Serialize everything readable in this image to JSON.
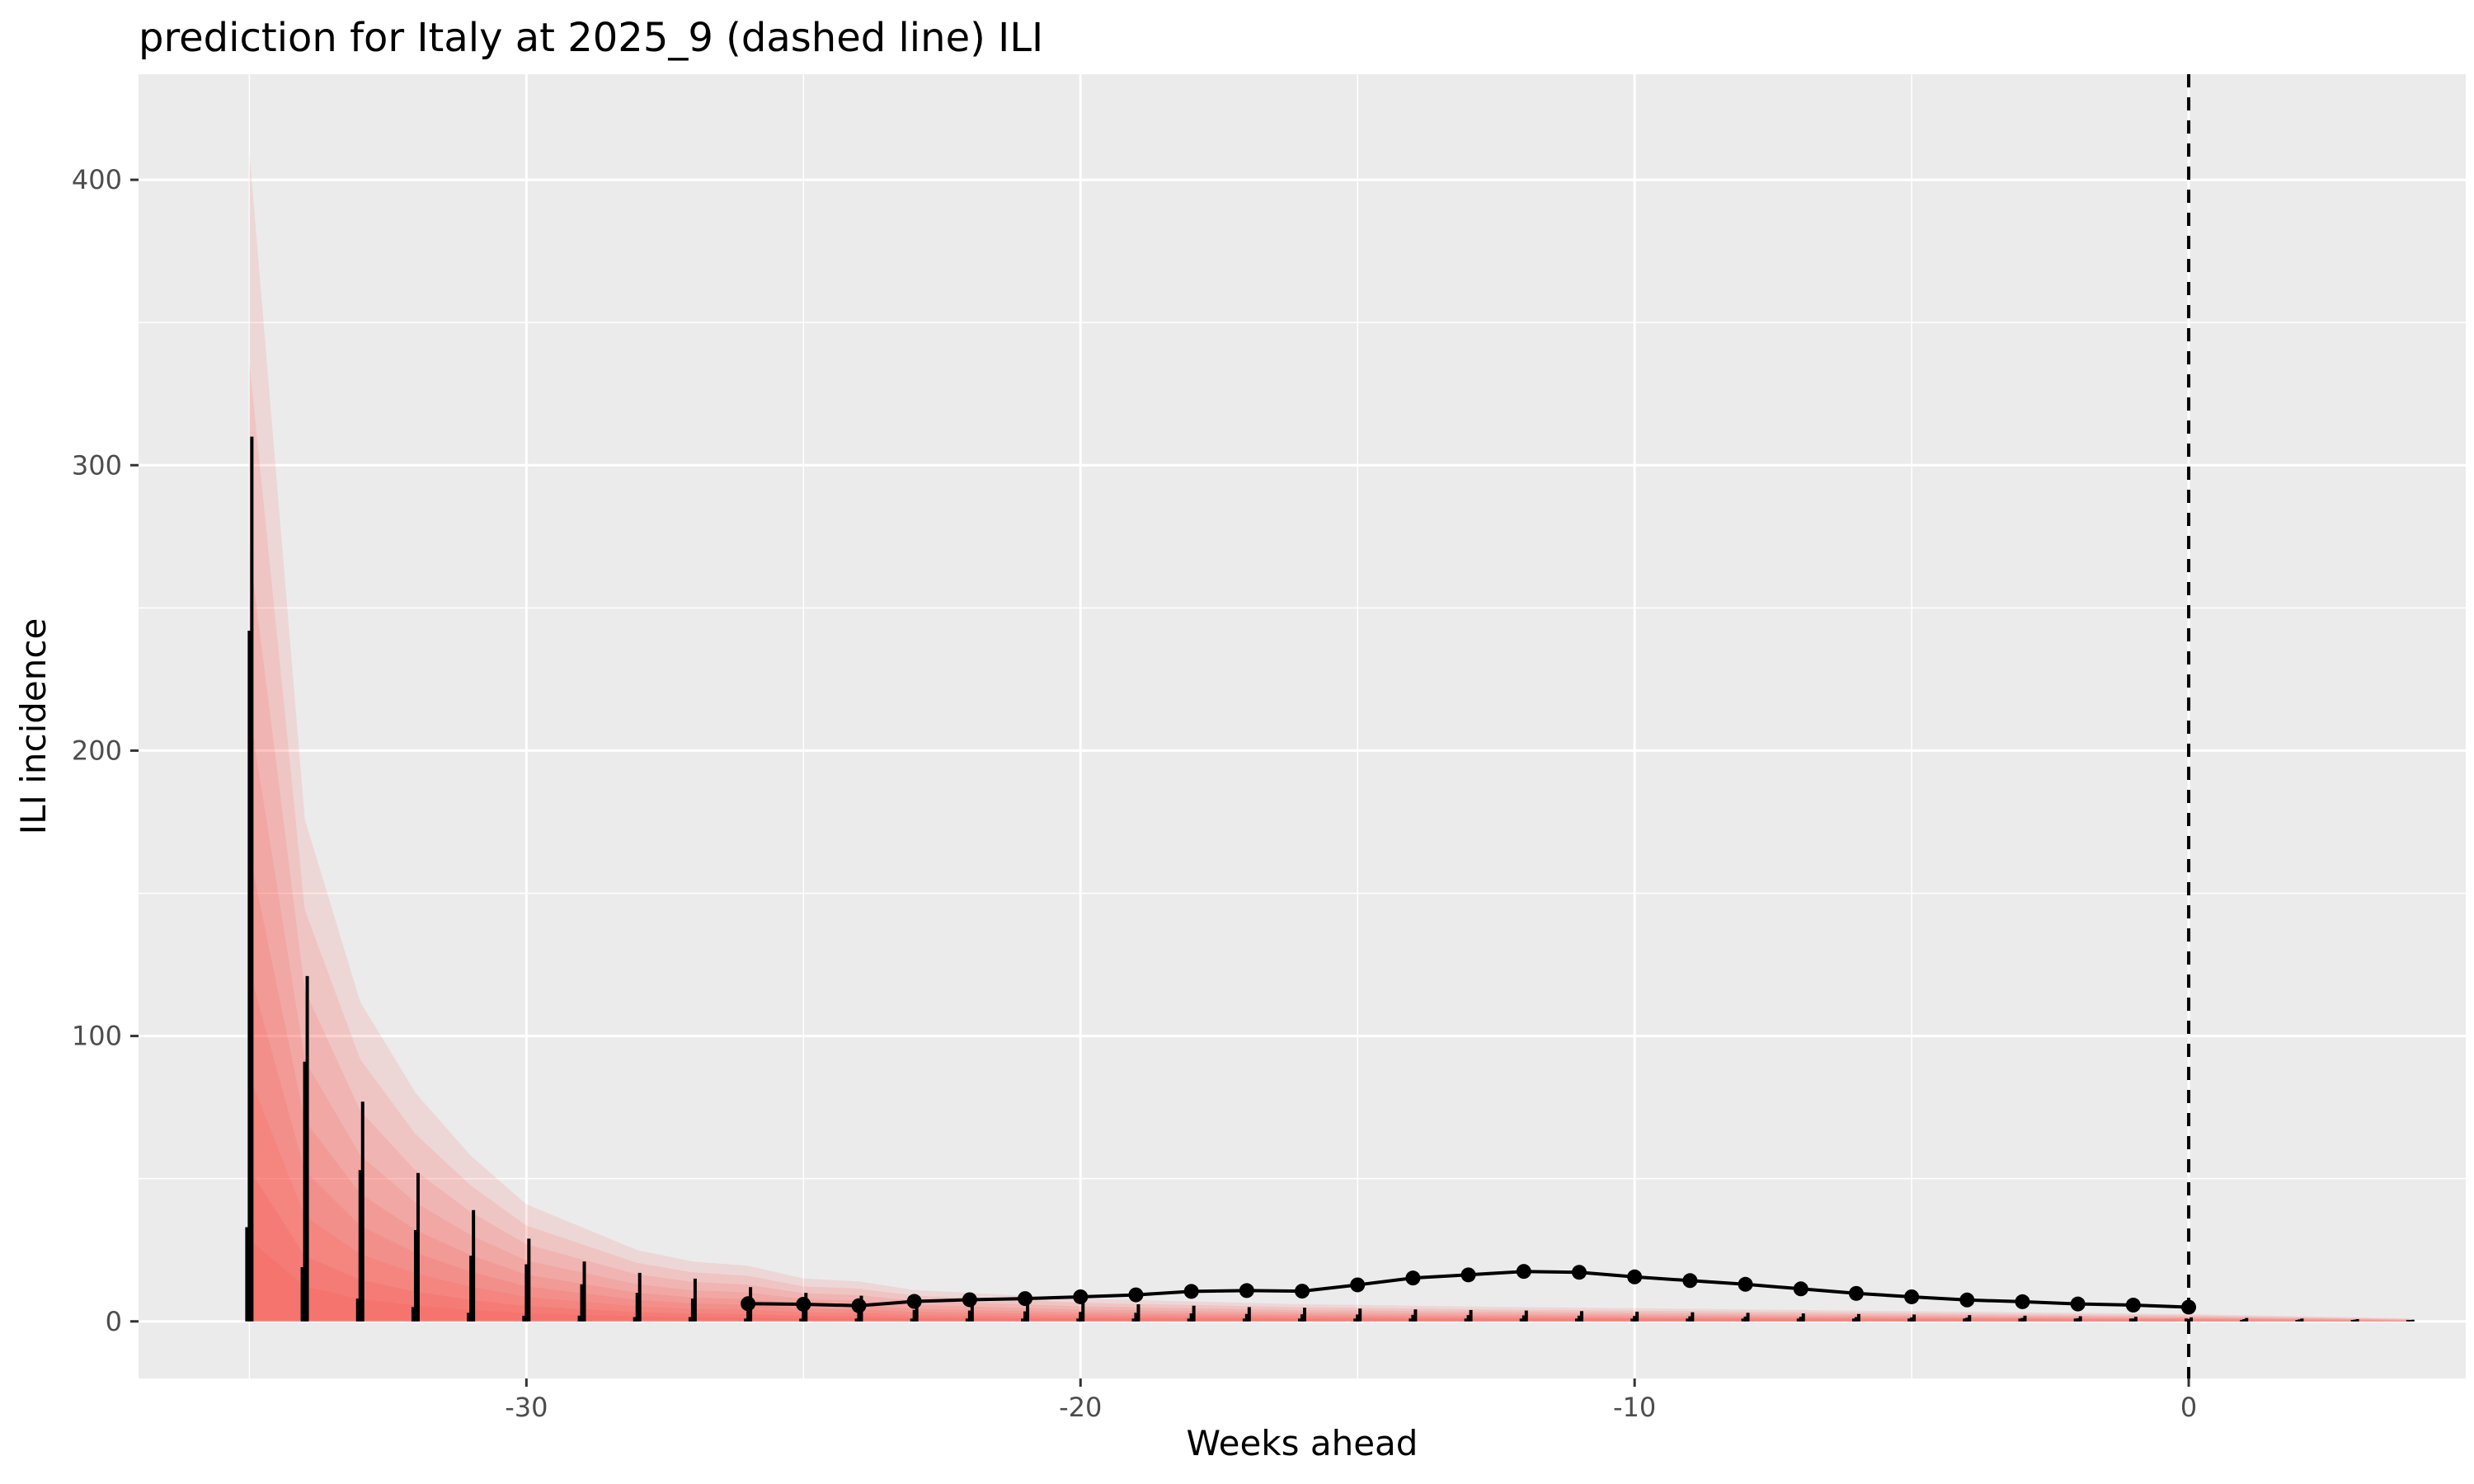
{
  "chart_data": {
    "type": "line",
    "title": "prediction for Italy at 2025_9 (dashed line) ILI",
    "xlabel": "Weeks ahead",
    "ylabel": "ILI incidence",
    "xlim": [
      -37,
      5
    ],
    "ylim": [
      -20,
      437
    ],
    "x_ticks": [
      -30,
      -20,
      -10,
      0
    ],
    "y_ticks": [
      0,
      100,
      200,
      300,
      400
    ],
    "grid": true,
    "legend": "none",
    "forecast_origin_x": 0,
    "colors": {
      "panel": "#ebebeb",
      "grid": "#ffffff",
      "band": "#ff3b30",
      "line": "#000000",
      "tick_text": "#4d4d4d"
    },
    "observed": {
      "x": [
        -26,
        -25,
        -24,
        -23,
        -22,
        -21,
        -20,
        -19,
        -18,
        -17,
        -16,
        -15,
        -14,
        -13,
        -12,
        -11,
        -10,
        -9,
        -8,
        -7,
        -6,
        -5,
        -4,
        -3,
        -2,
        -1,
        0
      ],
      "y": [
        6.2,
        6.0,
        5.5,
        7.0,
        7.6,
        8.0,
        8.6,
        9.3,
        10.5,
        10.8,
        10.6,
        12.8,
        15.2,
        16.3,
        17.5,
        17.2,
        15.6,
        14.3,
        13.0,
        11.4,
        9.8,
        8.6,
        7.5,
        6.9,
        6.1,
        5.7,
        5.0
      ]
    },
    "forecast_bands": {
      "x": [
        -35,
        -34,
        -33,
        -32,
        -31,
        -30,
        -29,
        -28,
        -27,
        -26,
        -25,
        -24,
        -23,
        -22,
        -21,
        -20,
        -19,
        -18,
        -17,
        -16,
        -15,
        -14,
        -13,
        -12,
        -11,
        -10,
        -9,
        -8,
        -7,
        -6,
        -5,
        -4,
        -3,
        -2,
        -1,
        0,
        1,
        2,
        3,
        4
      ],
      "upper": [
        410,
        176,
        112,
        80,
        58,
        41,
        33,
        25,
        21,
        19.5,
        15,
        14,
        11,
        10,
        9,
        8,
        7.5,
        7,
        6.5,
        6,
        5.8,
        5.5,
        5.2,
        5,
        4.8,
        4.6,
        4.4,
        4.2,
        4,
        3.8,
        3.6,
        3.4,
        3.2,
        3,
        2.8,
        2.6,
        2.2,
        1.8,
        1.4,
        1
      ]
    },
    "forecast_bars": {
      "x": [
        -35,
        -34,
        -33,
        -32,
        -31,
        -30,
        -29,
        -28,
        -27,
        -26,
        -25,
        -24,
        -23,
        -22,
        -21,
        -20,
        -19,
        -18,
        -17,
        -16,
        -15,
        -14,
        -13,
        -12,
        -11,
        -10,
        -9,
        -8,
        -7,
        -6,
        -5,
        -4,
        -3,
        -2,
        -1,
        0,
        1,
        2,
        3,
        4
      ],
      "high": [
        310,
        121,
        77,
        52,
        39,
        29,
        21,
        17,
        15,
        12,
        10,
        9,
        8,
        7.5,
        7,
        6.5,
        6,
        5.5,
        5,
        4.8,
        4.5,
        4.2,
        4,
        3.8,
        3.6,
        3.4,
        3.2,
        3,
        2.8,
        2.6,
        2.4,
        2.2,
        2,
        1.8,
        1.6,
        1.4,
        1.2,
        1,
        0.8,
        0.6
      ],
      "mid": [
        242,
        91,
        53,
        32,
        23,
        20,
        13,
        10,
        8,
        6,
        5,
        4.5,
        4,
        3.8,
        3.5,
        3.3,
        3,
        2.8,
        2.6,
        2.5,
        2.4,
        2.3,
        2.2,
        2.1,
        2,
        1.9,
        1.8,
        1.7,
        1.6,
        1.5,
        1.4,
        1.3,
        1.2,
        1.1,
        1,
        0.9,
        0.8,
        0.7,
        0.6,
        0.5
      ],
      "low": [
        33,
        19,
        8,
        5,
        3,
        2,
        2,
        1.5,
        1.5,
        1,
        1,
        1,
        1,
        1,
        1,
        1,
        1,
        1,
        1,
        1,
        1,
        1,
        1,
        1,
        1,
        1,
        1,
        1,
        1,
        1,
        1,
        1,
        1,
        1,
        1,
        1,
        0.5,
        0.5,
        0.5,
        0.5
      ]
    }
  }
}
